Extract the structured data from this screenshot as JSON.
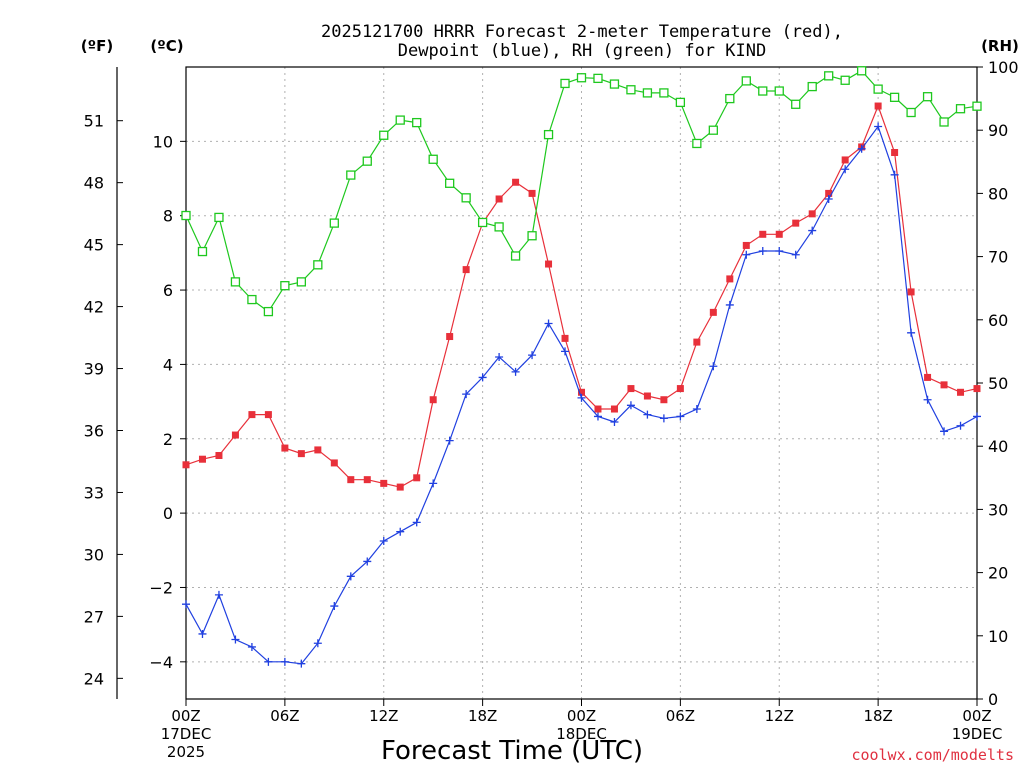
{
  "chart_data": {
    "type": "line",
    "title_line1": "2025121700 HRRR Forecast 2-meter Temperature (red),",
    "title_line2": "Dewpoint (blue), RH (green) for KIND",
    "left_outer_unit": "(ºF)",
    "left_inner_unit": "(ºC)",
    "right_unit": "(RH)",
    "xlabel": "Forecast Time (UTC)",
    "credit": "coolwx.com/modelts",
    "x_ticks": [
      {
        "hour": 0,
        "label": "00Z",
        "sub1": "17DEC",
        "sub2": "2025"
      },
      {
        "hour": 6,
        "label": "06Z",
        "sub1": "",
        "sub2": ""
      },
      {
        "hour": 12,
        "label": "12Z",
        "sub1": "",
        "sub2": ""
      },
      {
        "hour": 18,
        "label": "18Z",
        "sub1": "",
        "sub2": ""
      },
      {
        "hour": 24,
        "label": "00Z",
        "sub1": "18DEC",
        "sub2": ""
      },
      {
        "hour": 30,
        "label": "06Z",
        "sub1": "",
        "sub2": ""
      },
      {
        "hour": 36,
        "label": "12Z",
        "sub1": "",
        "sub2": ""
      },
      {
        "hour": 42,
        "label": "18Z",
        "sub1": "",
        "sub2": ""
      },
      {
        "hour": 48,
        "label": "00Z",
        "sub1": "19DEC",
        "sub2": ""
      }
    ],
    "xlim": [
      0,
      48
    ],
    "ylim_c": [
      -5,
      12
    ],
    "ylim_rh": [
      0,
      100
    ],
    "yticks_c": [
      -4,
      -2,
      0,
      2,
      4,
      6,
      8,
      10
    ],
    "yticks_c_labels": [
      "−4",
      "−2",
      "0",
      "2",
      "4",
      "6",
      "8",
      "10"
    ],
    "yticks_f": [
      24,
      27,
      30,
      33,
      36,
      39,
      42,
      45,
      48,
      51
    ],
    "yticks_rh": [
      0,
      10,
      20,
      30,
      40,
      50,
      60,
      70,
      80,
      90,
      100
    ],
    "series": [
      {
        "name": "2-meter Temperature",
        "color": "#e8303a",
        "marker": "filled-square",
        "axis": "celsius",
        "values": [
          1.3,
          1.45,
          1.55,
          2.1,
          2.65,
          2.65,
          1.75,
          1.6,
          1.7,
          1.35,
          0.9,
          0.9,
          0.8,
          0.7,
          0.95,
          3.05,
          4.75,
          6.55,
          7.8,
          8.45,
          8.9,
          8.6,
          6.7,
          4.7,
          3.25,
          2.8,
          2.8,
          3.35,
          3.15,
          3.05,
          3.35,
          4.6,
          5.4,
          6.3,
          7.2,
          7.5,
          7.5,
          7.8,
          8.05,
          8.6,
          9.5,
          9.85,
          10.95,
          9.7,
          5.95,
          3.65,
          3.45,
          3.25,
          3.35
        ]
      },
      {
        "name": "Dewpoint",
        "color": "#2040e0",
        "marker": "plus",
        "axis": "celsius",
        "values": [
          -2.45,
          -3.25,
          -2.2,
          -3.4,
          -3.6,
          -4.0,
          -4.0,
          -4.05,
          -3.5,
          -2.5,
          -1.7,
          -1.3,
          -0.75,
          -0.5,
          -0.25,
          0.8,
          1.95,
          3.2,
          3.65,
          4.2,
          3.8,
          4.25,
          5.1,
          4.35,
          3.1,
          2.6,
          2.45,
          2.9,
          2.65,
          2.55,
          2.6,
          2.8,
          3.95,
          5.6,
          6.95,
          7.05,
          7.05,
          6.95,
          7.6,
          8.45,
          9.25,
          9.8,
          10.4,
          9.1,
          4.85,
          3.05,
          2.2,
          2.35,
          2.6
        ]
      },
      {
        "name": "Relative Humidity",
        "color": "#1ec81e",
        "marker": "open-square",
        "axis": "rh",
        "values": [
          76.5,
          70.8,
          76.2,
          66.0,
          63.2,
          61.3,
          65.4,
          66.0,
          68.7,
          75.3,
          82.9,
          85.1,
          89.2,
          91.6,
          91.2,
          85.4,
          81.6,
          79.3,
          75.4,
          74.7,
          70.1,
          73.3,
          89.3,
          97.4,
          98.3,
          98.2,
          97.3,
          96.4,
          95.9,
          95.9,
          94.4,
          87.9,
          90.0,
          95.0,
          97.8,
          96.2,
          96.2,
          94.1,
          96.9,
          98.6,
          97.9,
          99.4,
          96.5,
          95.2,
          92.8,
          95.3,
          91.3,
          93.4,
          93.8
        ]
      }
    ]
  }
}
